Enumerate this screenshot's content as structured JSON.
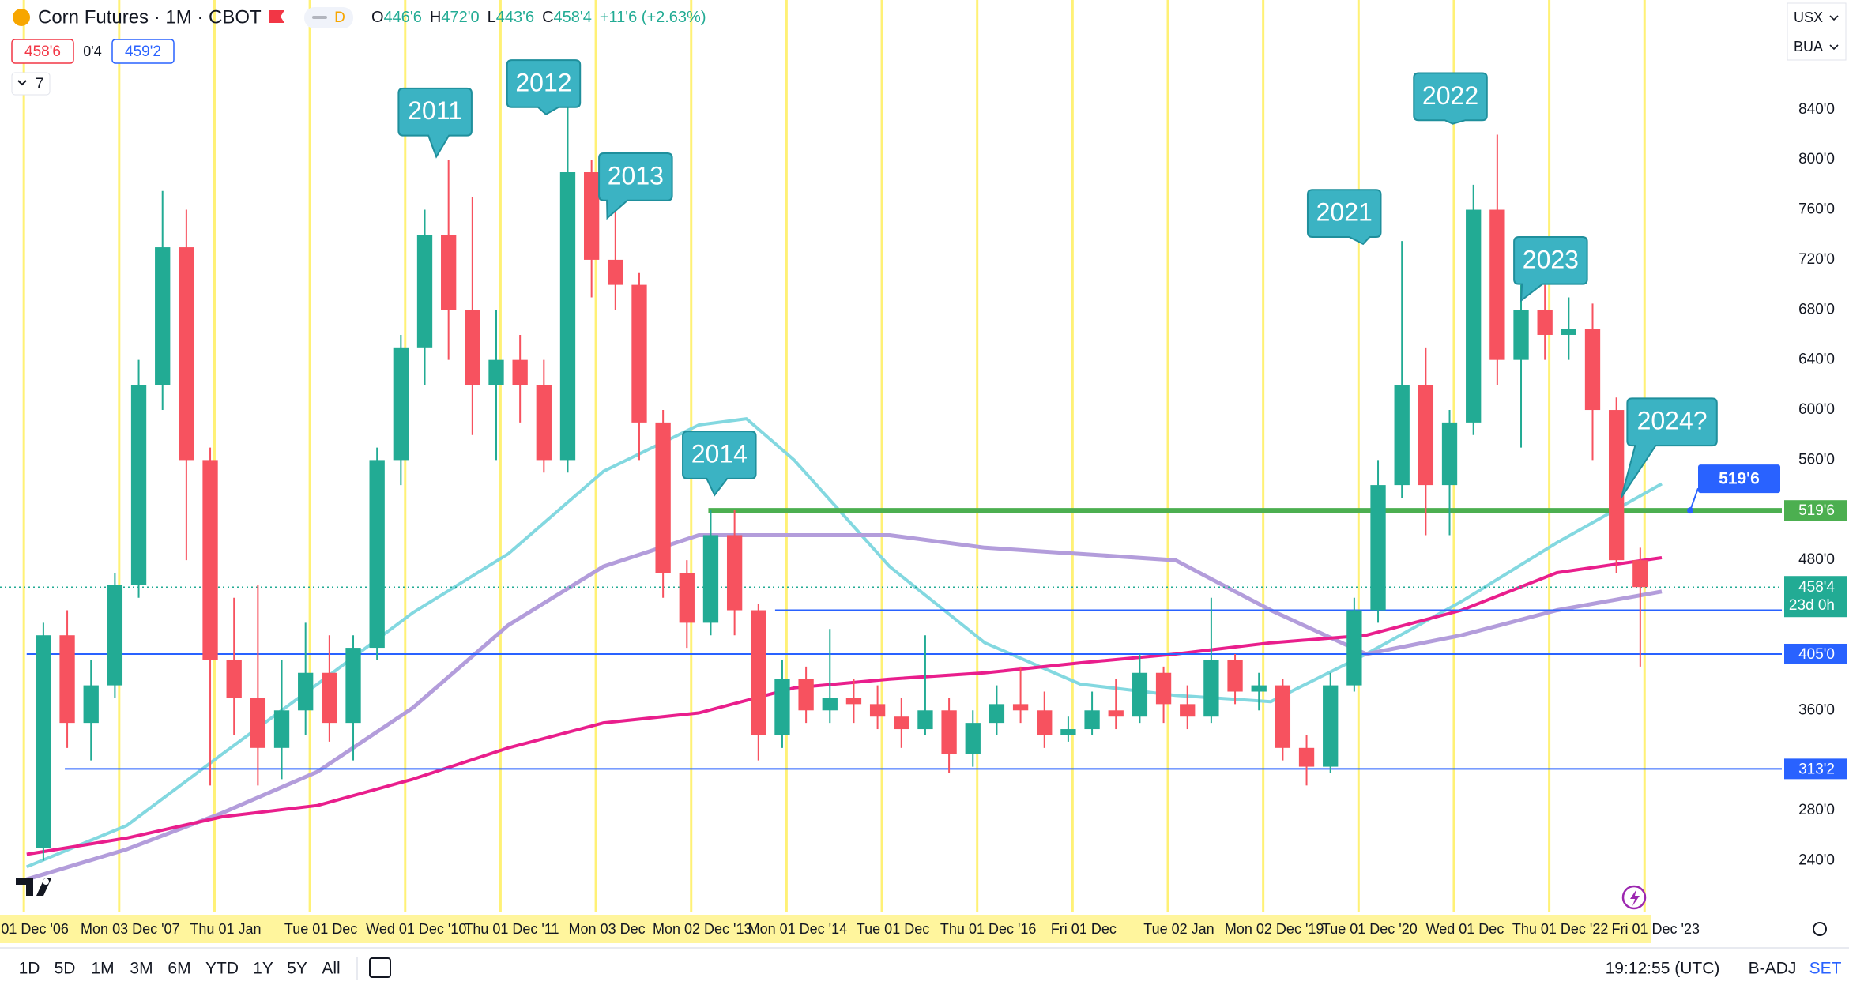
{
  "header": {
    "symbol": "Corn Futures · 1M · CBOT",
    "interval_badge": "D",
    "ohlc": [
      {
        "key": "O",
        "value": "446'6"
      },
      {
        "key": "H",
        "value": "472'0"
      },
      {
        "key": "L",
        "value": "443'6"
      },
      {
        "key": "C",
        "value": "458'4"
      }
    ],
    "change": "+11'6 (+2.63%)",
    "sell": "458'6",
    "spread": "0'4",
    "buy": "459'2",
    "indicators": "7"
  },
  "top_right": [
    "USX",
    "BUA"
  ],
  "chart_data": {
    "type": "candlestick",
    "x": [
      2007.125,
      2007.375,
      2007.625,
      2007.875,
      2008.125,
      2008.375,
      2008.625,
      2008.875,
      2009.125,
      2009.375,
      2009.625,
      2009.875,
      2010.125,
      2010.375,
      2010.625,
      2010.875,
      2011.125,
      2011.375,
      2011.625,
      2011.875,
      2012.125,
      2012.375,
      2012.625,
      2012.875,
      2013.125,
      2013.375,
      2013.625,
      2013.875,
      2014.125,
      2014.375,
      2014.625,
      2014.875,
      2015.125,
      2015.375,
      2015.625,
      2015.875,
      2016.125,
      2016.375,
      2016.625,
      2016.875,
      2017.125,
      2017.375,
      2017.625,
      2017.875,
      2018.125,
      2018.375,
      2018.625,
      2018.875,
      2019.125,
      2019.375,
      2019.625,
      2019.875,
      2020.125,
      2020.375,
      2020.625,
      2020.875,
      2021.125,
      2021.375,
      2021.625,
      2021.875,
      2022.125,
      2022.375,
      2022.625,
      2022.875,
      2023.125,
      2023.375,
      2023.625,
      2023.875
    ],
    "open": [
      250,
      420,
      350,
      380,
      460,
      620,
      730,
      560,
      400,
      370,
      330,
      360,
      390,
      350,
      410,
      560,
      650,
      740,
      680,
      620,
      640,
      620,
      560,
      790,
      720,
      700,
      590,
      470,
      430,
      500,
      440,
      340,
      385,
      360,
      370,
      365,
      355,
      345,
      360,
      325,
      350,
      365,
      360,
      340,
      345,
      360,
      355,
      390,
      365,
      355,
      400,
      375,
      380,
      330,
      315,
      380,
      440,
      540,
      620,
      540,
      590,
      760,
      640,
      680,
      660,
      665,
      600,
      480
    ],
    "high": [
      430,
      440,
      400,
      470,
      640,
      775,
      760,
      570,
      450,
      460,
      400,
      430,
      420,
      420,
      570,
      660,
      760,
      800,
      770,
      680,
      660,
      640,
      842,
      800,
      760,
      710,
      600,
      480,
      520,
      520,
      445,
      400,
      395,
      425,
      385,
      380,
      370,
      420,
      370,
      360,
      380,
      395,
      375,
      355,
      375,
      385,
      405,
      395,
      380,
      450,
      405,
      390,
      385,
      340,
      390,
      450,
      560,
      735,
      650,
      600,
      780,
      820,
      700,
      700,
      690,
      685,
      610,
      490
    ],
    "low": [
      240,
      330,
      320,
      370,
      450,
      600,
      480,
      300,
      340,
      300,
      305,
      340,
      335,
      320,
      400,
      540,
      620,
      640,
      580,
      560,
      590,
      550,
      550,
      690,
      680,
      560,
      450,
      410,
      420,
      420,
      320,
      330,
      350,
      350,
      350,
      345,
      330,
      340,
      310,
      315,
      340,
      350,
      330,
      335,
      340,
      345,
      350,
      350,
      345,
      350,
      365,
      360,
      320,
      300,
      310,
      375,
      430,
      530,
      500,
      500,
      580,
      620,
      570,
      640,
      640,
      560,
      470,
      395
    ],
    "close": [
      420,
      350,
      380,
      460,
      620,
      730,
      560,
      400,
      370,
      330,
      360,
      390,
      350,
      410,
      560,
      650,
      740,
      680,
      620,
      640,
      620,
      560,
      790,
      720,
      700,
      590,
      470,
      430,
      500,
      440,
      340,
      385,
      360,
      370,
      365,
      355,
      345,
      360,
      325,
      350,
      365,
      360,
      340,
      345,
      360,
      355,
      390,
      365,
      355,
      400,
      375,
      380,
      330,
      315,
      380,
      440,
      540,
      620,
      540,
      590,
      760,
      640,
      680,
      660,
      665,
      600,
      480,
      458.5
    ],
    "up_color": "#22ab94",
    "down_color": "#f7525f",
    "xlim": [
      2006.67,
      2025.36
    ],
    "ylim": [
      198.6,
      927.6
    ],
    "yticks": [
      {
        "value": 840,
        "label": "840'0"
      },
      {
        "value": 800,
        "label": "800'0"
      },
      {
        "value": 760,
        "label": "760'0"
      },
      {
        "value": 720,
        "label": "720'0"
      },
      {
        "value": 680,
        "label": "680'0"
      },
      {
        "value": 640,
        "label": "640'0"
      },
      {
        "value": 600,
        "label": "600'0"
      },
      {
        "value": 560,
        "label": "560'0"
      },
      {
        "value": 480,
        "label": "480'0"
      },
      {
        "value": 360,
        "label": "360'0"
      },
      {
        "value": 280,
        "label": "280'0"
      },
      {
        "value": 240,
        "label": "240'0"
      }
    ],
    "grid": false,
    "moving_averages": [
      {
        "color": "#83d8e0",
        "width": 4,
        "x": [
          2006.95,
          2008,
          2009,
          2010,
          2011,
          2012,
          2013,
          2014,
          2014.5,
          2015,
          2016,
          2017,
          2018,
          2019,
          2020,
          2021,
          2022,
          2023,
          2024.1
        ],
        "values": [
          235,
          268,
          325,
          381,
          438,
          485,
          551,
          588,
          593,
          560,
          475,
          414,
          381,
          372,
          367,
          405,
          447,
          494,
          541
        ]
      },
      {
        "color": "#b39ddb",
        "width": 5,
        "x": [
          2006.95,
          2008,
          2009,
          2010,
          2011,
          2012,
          2013,
          2014,
          2015,
          2016,
          2017,
          2018,
          2019,
          2020,
          2021,
          2022,
          2023,
          2024.1
        ],
        "values": [
          225,
          249,
          278,
          311,
          362,
          428,
          475,
          500,
          500,
          500,
          490,
          485,
          480,
          440,
          405,
          420,
          440,
          455
        ]
      },
      {
        "color": "#e91e8c",
        "width": 4,
        "x": [
          2006.95,
          2008,
          2009,
          2010,
          2011,
          2012,
          2013,
          2014,
          2015,
          2016,
          2017,
          2018,
          2019,
          2020,
          2021,
          2022,
          2023,
          2024.1
        ],
        "values": [
          245,
          258,
          275,
          284,
          305,
          330,
          350,
          358,
          378,
          385,
          390,
          398,
          405,
          414,
          420,
          440,
          470,
          482
        ]
      }
    ],
    "levels": [
      {
        "value": 519.75,
        "label": "519'6",
        "color": "#4caf50",
        "from": 2014.1,
        "width": 6
      },
      {
        "value": 405,
        "label": "405'0",
        "color": "#2962ff",
        "from": 2006.95,
        "width": 2
      },
      {
        "value": 313.25,
        "label": "313'2",
        "color": "#2962ff",
        "from": 2007.35,
        "width": 2
      },
      {
        "value": 440,
        "color": "#2962ff",
        "from": 2014.8,
        "width": 2
      }
    ],
    "last_price": {
      "value": 458.5,
      "label": "458'4",
      "countdown": "23d 0h",
      "color": "#22ab94"
    },
    "year_lines": {
      "color": "#fff176",
      "x": [
        2006.92,
        2007.92,
        2008.92,
        2009.92,
        2010.92,
        2011.92,
        2012.92,
        2013.92,
        2014.92,
        2015.92,
        2016.92,
        2017.92,
        2018.92,
        2019.92,
        2020.92,
        2021.92,
        2022.92,
        2023.92
      ]
    },
    "annotations": [
      "2011",
      "2012",
      "2013",
      "2014",
      "2021",
      "2022",
      "2023",
      "2024?"
    ],
    "x_labels": [
      "01 Dec '06",
      "Mon 03 Dec '07",
      "Thu 01 Jan",
      "Tue 01 Dec",
      "Wed 01 Dec '10",
      "Thu 01 Dec '11",
      "Mon 03 Dec",
      "Mon 02 Dec '13",
      "Mon 01 Dec '14",
      "Tue 01 Dec",
      "Thu 01 Dec '16",
      "Fri 01 Dec",
      "Tue 02 Jan",
      "Mon 02 Dec '19",
      "Tue 01 Dec '20",
      "Wed 01 Dec",
      "Thu 01 Dec '22",
      "Fri 01 Dec '23"
    ]
  },
  "toolbar": {
    "ranges": [
      "1D",
      "5D",
      "1M",
      "3M",
      "6M",
      "YTD",
      "1Y",
      "5Y",
      "All"
    ],
    "clock": "19:12:55 (UTC)",
    "adjust": "B-ADJ",
    "settlement": "SET"
  }
}
